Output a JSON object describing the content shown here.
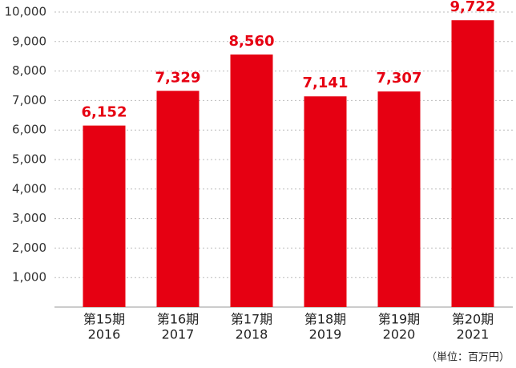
{
  "chart_data": {
    "type": "bar",
    "categories": [
      "第15期",
      "第16期",
      "第17期",
      "第18期",
      "第19期",
      "第20期"
    ],
    "category_years": [
      "2016",
      "2017",
      "2018",
      "2019",
      "2020",
      "2021"
    ],
    "values": [
      6152,
      7329,
      8560,
      7141,
      7307,
      9722
    ],
    "value_labels": [
      "6,152",
      "7,329",
      "8,560",
      "7,141",
      "7,307",
      "9,722"
    ],
    "color": "#e60012",
    "ylim": [
      0,
      10000
    ],
    "yticks": [
      {
        "value": 1000,
        "label": "1,000"
      },
      {
        "value": 2000,
        "label": "2,000"
      },
      {
        "value": 3000,
        "label": "3,000"
      },
      {
        "value": 4000,
        "label": "4,000"
      },
      {
        "value": 5000,
        "label": "5,000"
      },
      {
        "value": 6000,
        "label": "6,000"
      },
      {
        "value": 7000,
        "label": "7,000"
      },
      {
        "value": 8000,
        "label": "8,000"
      },
      {
        "value": 9000,
        "label": "9,000"
      },
      {
        "value": 10000,
        "label": "10,000"
      }
    ],
    "grid": true,
    "unit_note": "（単位：百万円）"
  }
}
